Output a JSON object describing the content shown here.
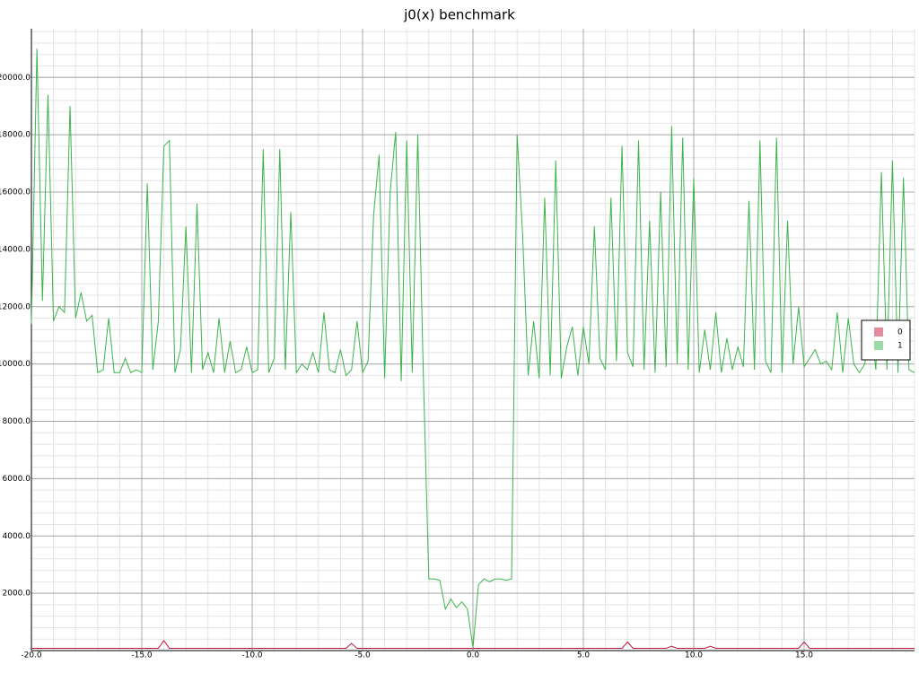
{
  "chart_data": {
    "type": "line",
    "title": "j0(x) benchmark",
    "x": [
      -20,
      -19.75,
      -19.5,
      -19.25,
      -19,
      -18.75,
      -18.5,
      -18.25,
      -18,
      -17.75,
      -17.5,
      -17.25,
      -17,
      -16.75,
      -16.5,
      -16.25,
      -16,
      -15.75,
      -15.5,
      -15.25,
      -15,
      -14.75,
      -14.5,
      -14.25,
      -14,
      -13.75,
      -13.5,
      -13.25,
      -13,
      -12.75,
      -12.5,
      -12.25,
      -12,
      -11.75,
      -11.5,
      -11.25,
      -11,
      -10.75,
      -10.5,
      -10.25,
      -10,
      -9.75,
      -9.5,
      -9.25,
      -9,
      -8.75,
      -8.5,
      -8.25,
      -8,
      -7.75,
      -7.5,
      -7.25,
      -7,
      -6.75,
      -6.5,
      -6.25,
      -6,
      -5.75,
      -5.5,
      -5.25,
      -5,
      -4.75,
      -4.5,
      -4.25,
      -4,
      -3.75,
      -3.5,
      -3.25,
      -3,
      -2.75,
      -2.5,
      -2.25,
      -2,
      -1.75,
      -1.5,
      -1.25,
      -1,
      -0.75,
      -0.5,
      -0.25,
      0,
      0.25,
      0.5,
      0.75,
      1,
      1.25,
      1.5,
      1.75,
      2,
      2.25,
      2.5,
      2.75,
      3,
      3.25,
      3.5,
      3.75,
      4,
      4.25,
      4.5,
      4.75,
      5,
      5.25,
      5.5,
      5.75,
      6,
      6.25,
      6.5,
      6.75,
      7,
      7.25,
      7.5,
      7.75,
      8,
      8.25,
      8.5,
      8.75,
      9,
      9.25,
      9.5,
      9.75,
      10,
      10.25,
      10.5,
      10.75,
      11,
      11.25,
      11.5,
      11.75,
      12,
      12.25,
      12.5,
      12.75,
      13,
      13.25,
      13.5,
      13.75,
      14,
      14.25,
      14.5,
      14.75,
      15,
      15.25,
      15.5,
      15.75,
      16,
      16.25,
      16.5,
      16.75,
      17,
      17.25,
      17.5,
      17.75,
      18,
      18.25,
      18.5,
      18.75,
      19,
      19.25,
      19.5,
      19.75,
      20
    ],
    "series": [
      {
        "name": "0",
        "color": "#c8163c",
        "values": [
          80,
          80,
          80,
          80,
          80,
          80,
          80,
          80,
          80,
          80,
          80,
          80,
          80,
          80,
          80,
          80,
          80,
          80,
          80,
          80,
          80,
          80,
          80,
          80,
          350,
          80,
          80,
          80,
          80,
          80,
          80,
          80,
          80,
          80,
          80,
          80,
          80,
          80,
          80,
          80,
          80,
          80,
          80,
          80,
          80,
          80,
          80,
          80,
          80,
          80,
          80,
          80,
          80,
          80,
          80,
          80,
          80,
          80,
          250,
          80,
          80,
          80,
          80,
          80,
          80,
          80,
          80,
          80,
          80,
          80,
          80,
          80,
          80,
          80,
          80,
          80,
          80,
          80,
          80,
          80,
          80,
          80,
          80,
          80,
          80,
          80,
          80,
          80,
          80,
          80,
          80,
          80,
          80,
          80,
          80,
          80,
          80,
          80,
          80,
          80,
          80,
          80,
          80,
          80,
          80,
          80,
          80,
          80,
          300,
          80,
          80,
          80,
          80,
          80,
          80,
          80,
          150,
          80,
          80,
          80,
          80,
          80,
          80,
          150,
          80,
          80,
          80,
          80,
          80,
          80,
          80,
          80,
          80,
          80,
          80,
          80,
          80,
          80,
          80,
          80,
          300,
          80,
          80,
          80,
          80,
          80,
          80,
          80,
          80,
          80,
          80,
          80,
          80,
          80,
          80,
          80,
          80,
          80,
          80,
          80,
          80
        ]
      },
      {
        "name": "1",
        "color": "#3cb44b",
        "values": [
          11400,
          21000,
          12200,
          19400,
          11500,
          12000,
          11800,
          19000,
          11600,
          12500,
          11500,
          11700,
          9700,
          9800,
          11600,
          9700,
          9700,
          10200,
          9700,
          9800,
          9700,
          16300,
          9800,
          11500,
          17600,
          17800,
          9700,
          10500,
          14800,
          9700,
          15600,
          9800,
          10400,
          9700,
          11600,
          9700,
          10800,
          9700,
          9800,
          10600,
          9700,
          9800,
          17500,
          9700,
          10200,
          17500,
          9800,
          15300,
          9700,
          10000,
          9800,
          10400,
          9700,
          11800,
          9800,
          9700,
          10500,
          9600,
          9800,
          11500,
          9700,
          10100,
          15200,
          17300,
          9500,
          16000,
          18100,
          9400,
          17800,
          9700,
          18000,
          9700,
          2500,
          2500,
          2450,
          1450,
          1800,
          1500,
          1700,
          1450,
          100,
          2300,
          2500,
          2400,
          2500,
          2500,
          2450,
          2500,
          18000,
          14500,
          9600,
          11500,
          9500,
          15800,
          9600,
          17100,
          9500,
          10600,
          11300,
          9600,
          11300,
          10000,
          14800,
          10200,
          9800,
          15800,
          10100,
          17600,
          10400,
          9900,
          17800,
          9800,
          15000,
          9700,
          16000,
          9900,
          18300,
          10000,
          17900,
          9800,
          16500,
          9700,
          11200,
          9800,
          11800,
          9700,
          10900,
          9800,
          10600,
          9900,
          15700,
          9800,
          17800,
          10100,
          9700,
          17900,
          9700,
          15000,
          10000,
          12000,
          9900,
          10200,
          10500,
          10000,
          10100,
          9800,
          11800,
          9700,
          11600,
          10000,
          9700,
          10000,
          11400,
          9800,
          16700,
          9800,
          17100,
          9700,
          16500,
          9800,
          9700
        ]
      }
    ],
    "xlim": [
      -20,
      20
    ],
    "xticks": [
      {
        "value": -20,
        "label": "-20.0"
      },
      {
        "value": -15,
        "label": "-15.0"
      },
      {
        "value": -10,
        "label": "-10.0"
      },
      {
        "value": -5,
        "label": "-5.0"
      },
      {
        "value": 0,
        "label": "0.0"
      },
      {
        "value": 5,
        "label": "5.0"
      },
      {
        "value": 10,
        "label": "10.0"
      },
      {
        "value": 15,
        "label": "15.0"
      }
    ],
    "ylim": [
      0,
      21700
    ],
    "yticks": [
      {
        "value": 2000,
        "label": "2000.0"
      },
      {
        "value": 4000,
        "label": "4000.0"
      },
      {
        "value": 6000,
        "label": "6000.0"
      },
      {
        "value": 8000,
        "label": "8000.0"
      },
      {
        "value": 10000,
        "label": "10000.0"
      },
      {
        "value": 12000,
        "label": "12000.0"
      },
      {
        "value": 14000,
        "label": "14000.0"
      },
      {
        "value": 16000,
        "label": "16000.0"
      },
      {
        "value": 18000,
        "label": "18000.0"
      },
      {
        "value": 20000,
        "label": "20000.0"
      }
    ],
    "grid": true,
    "minor_grid": 5,
    "legend": "right"
  }
}
